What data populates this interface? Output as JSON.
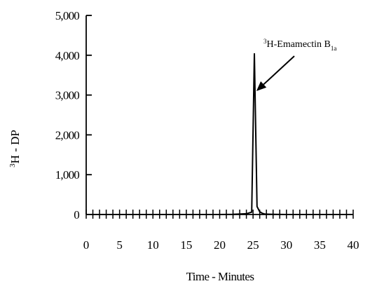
{
  "chart_data": {
    "type": "line",
    "title": "",
    "xlabel": "Time - Minutes",
    "ylabel_sup": "3",
    "ylabel": "H - DP",
    "xlim": [
      0,
      40
    ],
    "ylim": [
      0,
      5000
    ],
    "x_ticks": [
      "0",
      "5",
      "10",
      "15",
      "20",
      "25",
      "30",
      "35",
      "40"
    ],
    "y_ticks": [
      "0",
      "1,000",
      "2,000",
      "3,000",
      "4,000",
      "5,000"
    ],
    "grid": false,
    "legend": "none",
    "series": [
      {
        "x": [
          0,
          20,
          22,
          24,
          24.8,
          25.2,
          25.6,
          26.0,
          26.4,
          26.8,
          28,
          30,
          35,
          40
        ],
        "y": [
          0,
          0,
          5,
          20,
          60,
          4050,
          200,
          70,
          30,
          10,
          5,
          0,
          0,
          0
        ]
      }
    ],
    "annotation": {
      "prefix_sup": "3",
      "text": "H-Emamectin B",
      "subscript": "1a",
      "points_to": {
        "x": 25.5,
        "y": 3100
      }
    }
  }
}
